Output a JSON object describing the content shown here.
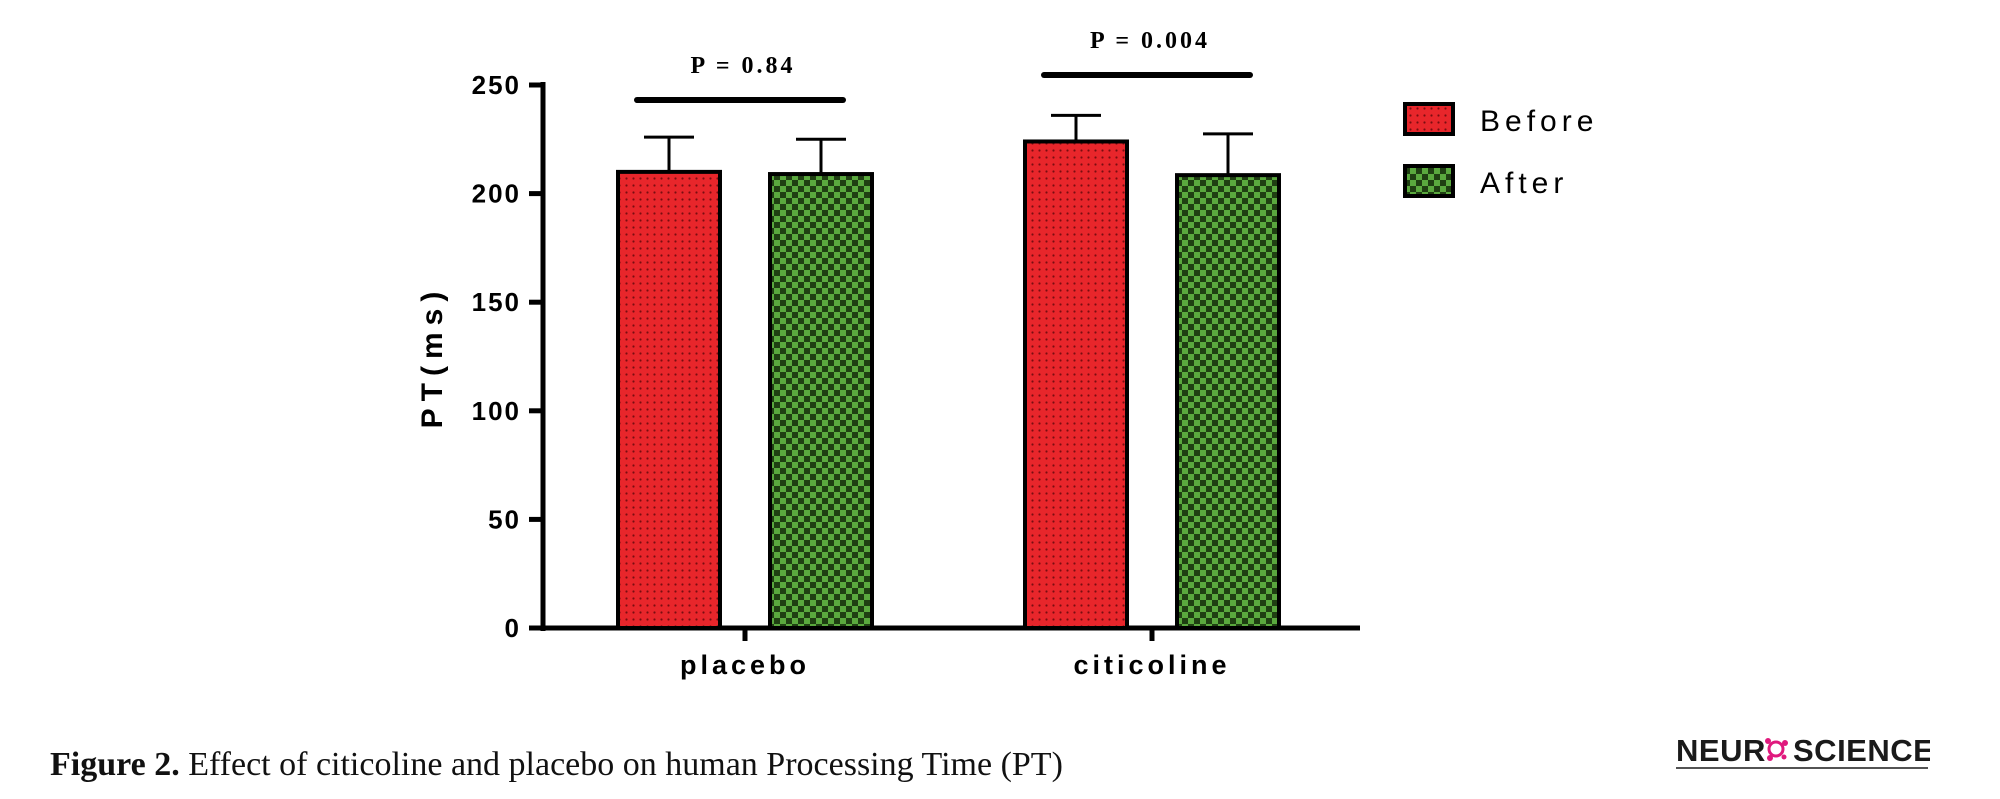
{
  "chart_data": {
    "type": "bar",
    "categories": [
      "placebo",
      "citicoline"
    ],
    "series": [
      {
        "name": "Before",
        "values": [
          210,
          224
        ],
        "errors": [
          16,
          12
        ],
        "color": "#e8262b",
        "pattern": "dots"
      },
      {
        "name": "After",
        "values": [
          209,
          208.5
        ],
        "errors": [
          16,
          19
        ],
        "color": "#5aa83e",
        "pattern": "checker"
      }
    ],
    "ylabel": "PT(ms)",
    "xlabel": "",
    "ylim": [
      0,
      250
    ],
    "yticks": [
      "0",
      "50",
      "100",
      "150",
      "200",
      "250"
    ],
    "annotations": [
      {
        "label": "P = 0.84",
        "group": "placebo"
      },
      {
        "label": "P = 0.004",
        "group": "citicoline"
      }
    ],
    "legend_position": "top-right",
    "grid": false
  },
  "caption": {
    "label": "Figure 2.",
    "text": " Effect of citicoline and placebo on human Processing Time (PT)"
  },
  "logo": {
    "text_left": "NEUR",
    "text_right": "SCIENCE",
    "accent_color": "#e0197d"
  }
}
